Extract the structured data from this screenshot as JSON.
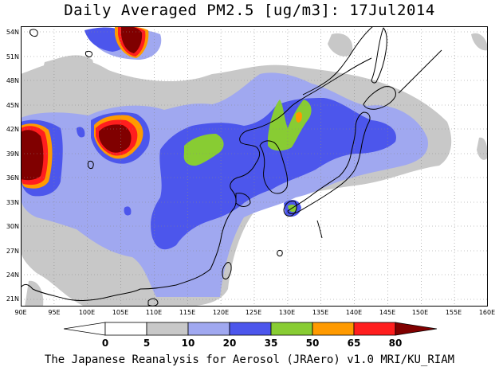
{
  "title": "Daily Averaged PM2.5 [ug/m3]: 17Jul2014",
  "footer": "The Japanese Reanalysis for Aerosol (JRAero) v1.0 MRI/KU_RIAM",
  "lat_labels": [
    "54N",
    "51N",
    "48N",
    "45N",
    "42N",
    "39N",
    "36N",
    "33N",
    "30N",
    "27N",
    "24N",
    "21N"
  ],
  "lon_labels": [
    "90E",
    "95E",
    "100E",
    "105E",
    "110E",
    "115E",
    "120E",
    "125E",
    "130E",
    "135E",
    "140E",
    "145E",
    "150E",
    "155E",
    "160E"
  ],
  "colorbar": {
    "thresholds": [
      "0",
      "5",
      "10",
      "20",
      "35",
      "50",
      "65",
      "80"
    ],
    "colors": [
      "#ffffff",
      "#c8c8c8",
      "#a0a8f0",
      "#4c56ec",
      "#88cc33",
      "#ff9a00",
      "#ff1e1e",
      "#800000"
    ]
  },
  "map_colors": {
    "c1": "#c8c8c8",
    "c2": "#a0a8f0",
    "c3": "#4c56ec",
    "c4": "#88cc33",
    "c5": "#ff9a00",
    "c6": "#ff1e1e",
    "c7": "#800000",
    "coast": "#000000",
    "grid": "#888888"
  }
}
